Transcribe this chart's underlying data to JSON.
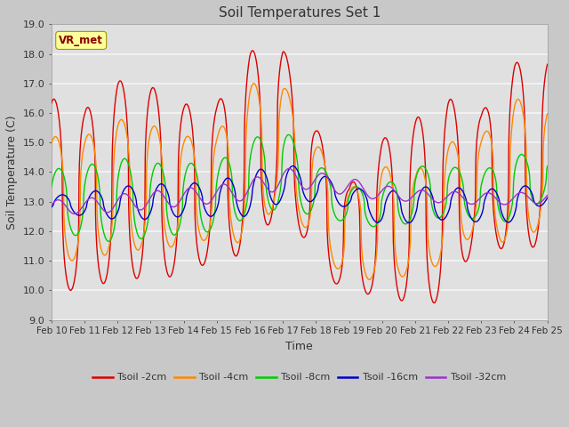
{
  "title": "Soil Temperatures Set 1",
  "xlabel": "Time",
  "ylabel": "Soil Temperature (C)",
  "ylim": [
    9.0,
    19.0
  ],
  "yticks": [
    9.0,
    10.0,
    11.0,
    12.0,
    13.0,
    14.0,
    15.0,
    16.0,
    17.0,
    18.0,
    19.0
  ],
  "date_labels": [
    "Feb 10",
    "Feb 11",
    "Feb 12",
    "Feb 13",
    "Feb 14",
    "Feb 15",
    "Feb 16",
    "Feb 17",
    "Feb 18",
    "Feb 19",
    "Feb 20",
    "Feb 21",
    "Feb 22",
    "Feb 23",
    "Feb 24",
    "Feb 25"
  ],
  "legend_label": "VR_met",
  "series_labels": [
    "Tsoil -2cm",
    "Tsoil -4cm",
    "Tsoil -8cm",
    "Tsoil -16cm",
    "Tsoil -32cm"
  ],
  "series_colors": [
    "#dd0000",
    "#ff8800",
    "#00cc00",
    "#0000cc",
    "#9933cc"
  ],
  "fig_facecolor": "#c8c8c8",
  "axes_bg_color": "#e0e0e0",
  "grid_color": "#f5f5f5",
  "title_color": "#333333",
  "axes_label_color": "#333333",
  "tick_label_color": "#333333",
  "legend_box_facecolor": "#ffff99",
  "legend_box_edgecolor": "#999900",
  "legend_text_color": "#880000",
  "figsize": [
    6.4,
    4.8
  ],
  "dpi": 100
}
